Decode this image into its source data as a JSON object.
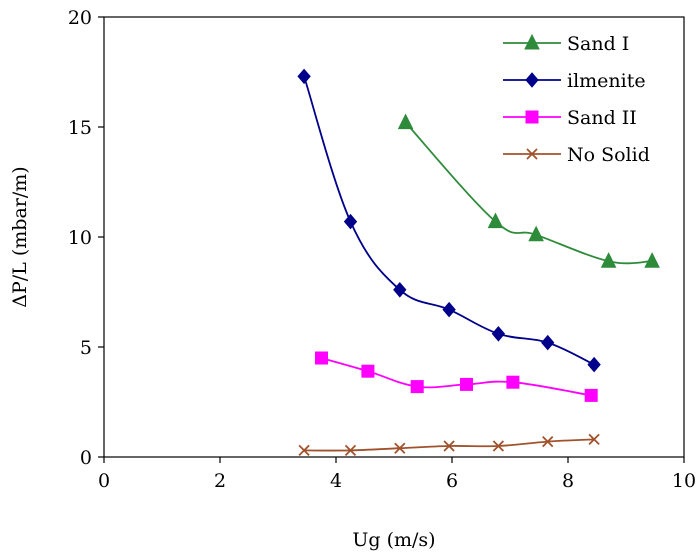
{
  "chart_data": {
    "type": "line",
    "title": "",
    "xlabel": "Ug (m/s)",
    "ylabel": "ΔP/L (mbar/m)",
    "xlim": [
      0,
      10
    ],
    "ylim": [
      0,
      20
    ],
    "xticks": [
      0,
      2,
      4,
      6,
      8,
      10
    ],
    "yticks": [
      0,
      5,
      10,
      15,
      20
    ],
    "grid": false,
    "legend_position": "top-right",
    "series": [
      {
        "name": "Sand I",
        "color": "#2e8b3a",
        "marker": "triangle",
        "x": [
          5.2,
          6.75,
          7.45,
          8.7,
          9.45
        ],
        "y": [
          15.2,
          10.7,
          10.1,
          8.9,
          8.9
        ]
      },
      {
        "name": "ilmenite",
        "color": "#00008b",
        "marker": "diamond",
        "x": [
          3.45,
          4.25,
          5.1,
          5.95,
          6.8,
          7.65,
          8.45
        ],
        "y": [
          17.3,
          10.7,
          7.6,
          6.7,
          5.6,
          5.2,
          4.2
        ]
      },
      {
        "name": "Sand II",
        "color": "#ff00ff",
        "marker": "square",
        "x": [
          3.75,
          4.55,
          5.4,
          6.25,
          7.05,
          8.4
        ],
        "y": [
          4.5,
          3.9,
          3.2,
          3.3,
          3.4,
          2.8
        ]
      },
      {
        "name": "No Solid",
        "color": "#a0522d",
        "marker": "x",
        "x": [
          3.45,
          4.25,
          5.1,
          5.95,
          6.8,
          7.65,
          8.45
        ],
        "y": [
          0.3,
          0.3,
          0.4,
          0.5,
          0.5,
          0.7,
          0.8
        ]
      }
    ]
  }
}
